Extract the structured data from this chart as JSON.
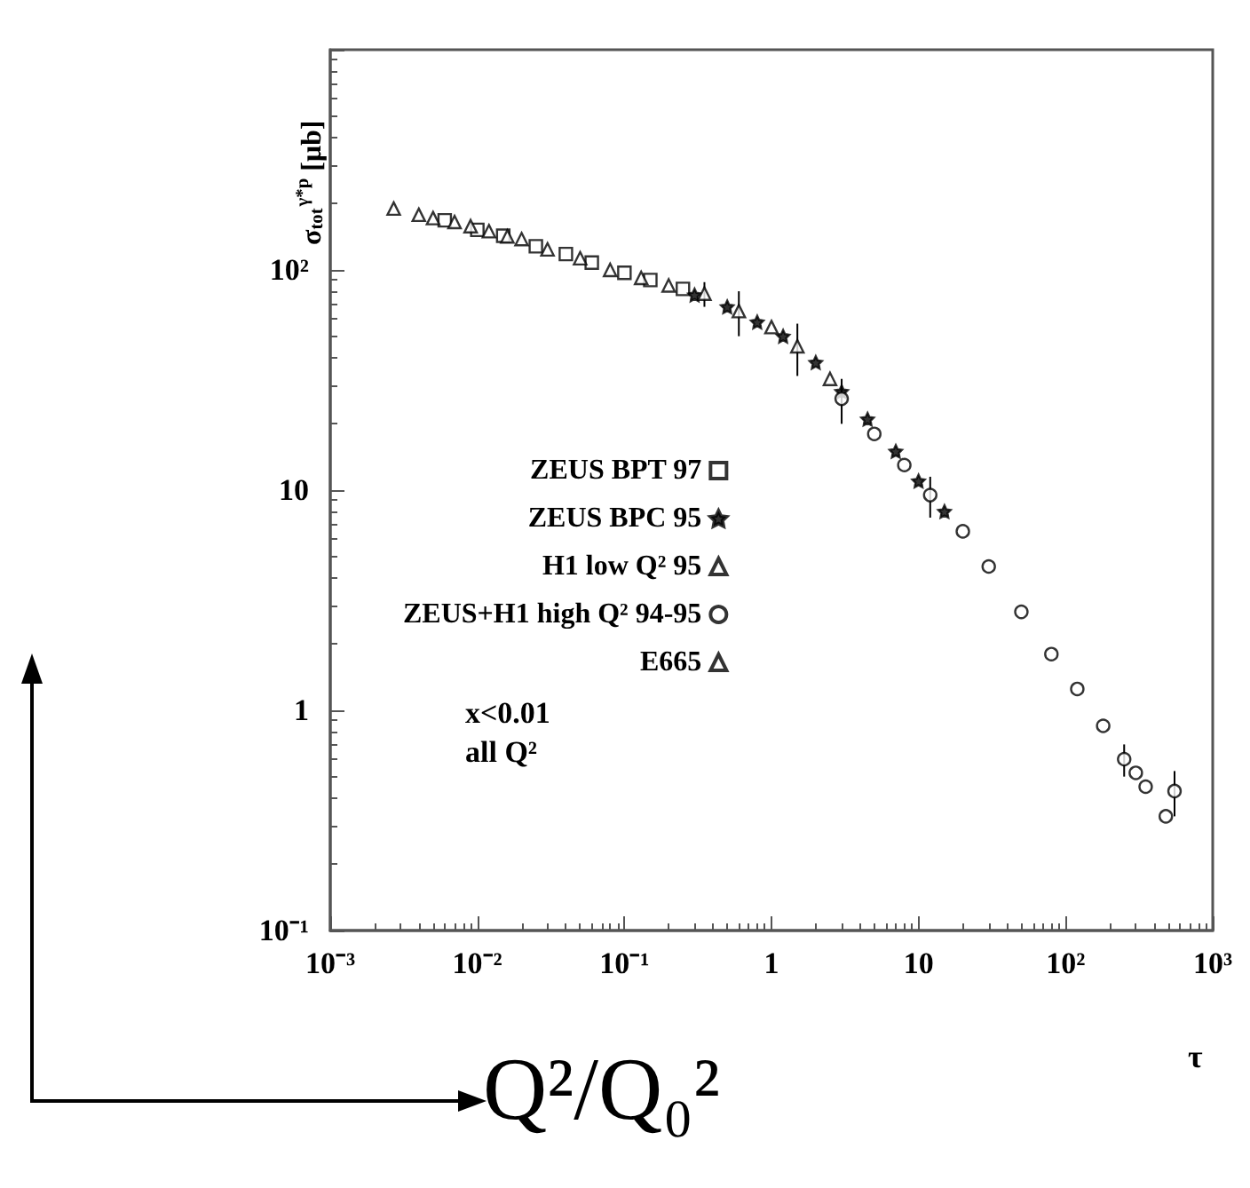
{
  "chart_data": {
    "type": "scatter",
    "xlabel": "τ",
    "ylabel": "σ$_{tot}$$^{γ*p}$ [μb]",
    "log": "xy",
    "grid": false,
    "legend": "left",
    "xlim": [
      0.001,
      1000
    ],
    "ylim": [
      0.1,
      1000
    ],
    "xticks": [
      {
        "value": 0.001,
        "label": "10⁻³"
      },
      {
        "value": 0.01,
        "label": "10⁻²"
      },
      {
        "value": 0.1,
        "label": "10⁻¹"
      },
      1,
      10,
      {
        "value": 100,
        "label": "10²"
      },
      {
        "value": 1000,
        "label": "10³"
      }
    ],
    "yticks": [
      {
        "value": 0.1,
        "label": "10⁻¹"
      },
      1,
      10,
      {
        "value": 100,
        "label": "10²"
      },
      {
        "value": 1000,
        "label": null
      }
    ],
    "annotations": [
      "x<0.01",
      "all Q²",
      "Q²/Q₀²"
    ],
    "series": [
      {
        "name": "ZEUS BPT 97",
        "color": "#000000",
        "marker": "square",
        "x": [
          0.006,
          0.01,
          0.015,
          0.025,
          0.04,
          0.06,
          0.1,
          0.15,
          0.25
        ],
        "values": [
          168,
          152,
          143,
          128,
          118,
          108,
          97,
          90,
          82
        ]
      },
      {
        "name": "ZEUS BPC 95",
        "color": "#000000",
        "marker": "star",
        "x": [
          0.3,
          0.5,
          0.8,
          1.2,
          2,
          3,
          4.5,
          7,
          10,
          15
        ],
        "values": [
          77,
          68,
          58,
          50,
          38,
          28,
          21,
          15,
          11,
          8
        ]
      },
      {
        "name": "H1 low Q² 95",
        "color": "#000000",
        "marker": "triangle",
        "x": [
          0.03,
          0.05,
          0.08,
          0.13,
          0.2,
          0.35,
          0.6,
          1,
          1.5,
          2.5
        ],
        "values": [
          124,
          113,
          100,
          92,
          85,
          78,
          65,
          55,
          45,
          32
        ],
        "errors": [
          null,
          null,
          null,
          null,
          null,
          10,
          15,
          null,
          12,
          null
        ]
      },
      {
        "name": "ZEUS+H1 high Q² 94-95",
        "color": "#000000",
        "marker": "circle",
        "x": [
          3,
          5,
          8,
          12,
          20,
          30,
          50,
          80,
          120,
          180,
          250,
          300,
          350,
          480,
          550
        ],
        "values": [
          26,
          18,
          13,
          9.5,
          6.5,
          4.5,
          2.8,
          1.8,
          1.25,
          0.85,
          0.6,
          0.52,
          0.45,
          0.33,
          0.43
        ],
        "errors": [
          6,
          null,
          null,
          2,
          null,
          null,
          null,
          null,
          null,
          null,
          0.1,
          null,
          null,
          null,
          0.1
        ]
      },
      {
        "name": "E665",
        "color": "#000000",
        "marker": "triangle",
        "x": [
          0.0027,
          0.004,
          0.005,
          0.007,
          0.009,
          0.012,
          0.016,
          0.02
        ],
        "values": [
          190,
          178,
          172,
          165,
          158,
          150,
          142,
          138
        ]
      }
    ]
  }
}
